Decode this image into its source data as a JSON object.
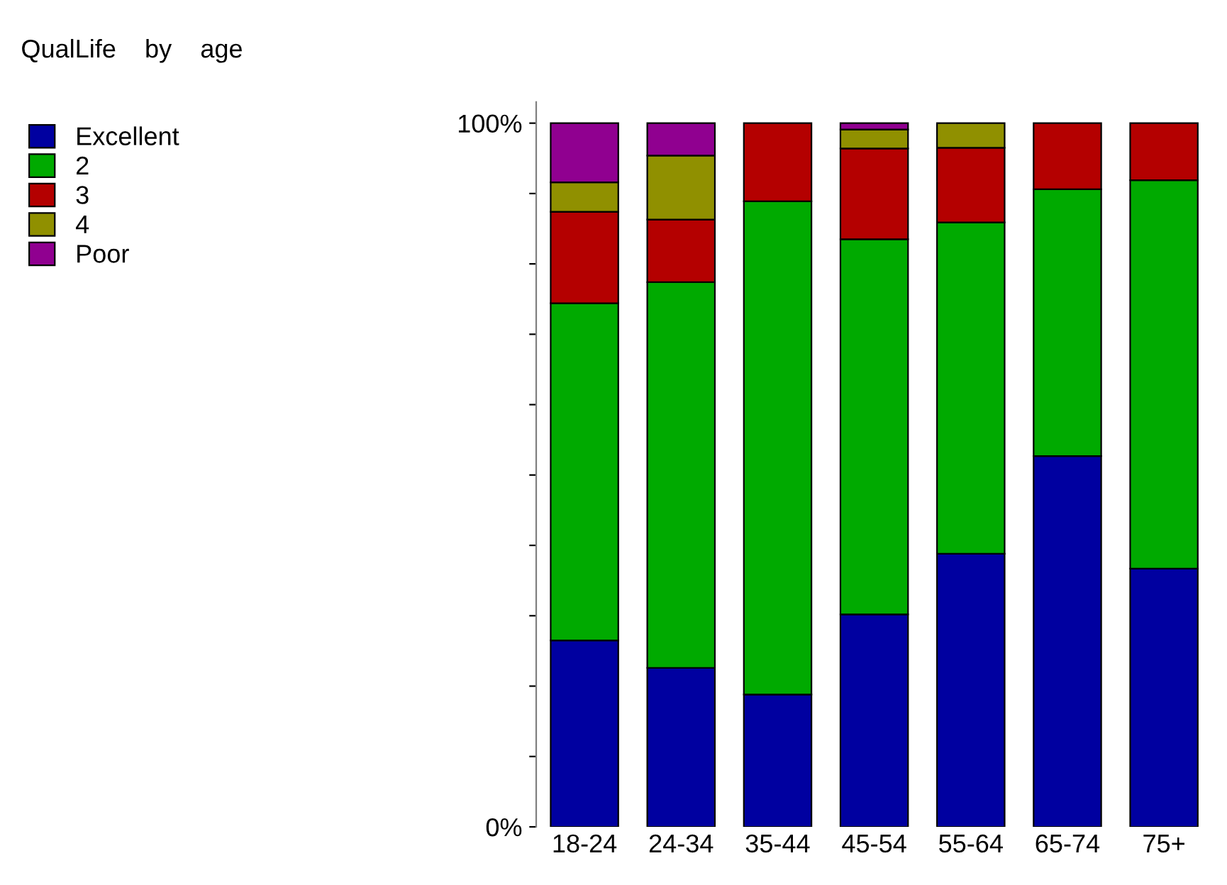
{
  "chart_data": {
    "type": "bar",
    "title": "QualLife    by    age",
    "stacked": true,
    "categories": [
      "18-24",
      "24-34",
      "35-44",
      "45-54",
      "55-64",
      "65-74",
      "75+"
    ],
    "series": [
      {
        "name": "Excellent",
        "color": "#0000a0",
        "values": [
          26.5,
          22.6,
          18.8,
          30.2,
          38.8,
          52.7,
          36.7
        ]
      },
      {
        "name": "2",
        "color": "#00aa00",
        "values": [
          47.9,
          54.8,
          70.1,
          53.3,
          47.1,
          37.9,
          55.2
        ]
      },
      {
        "name": "3",
        "color": "#b40000",
        "values": [
          13.0,
          8.9,
          11.1,
          12.9,
          10.6,
          9.4,
          8.1
        ]
      },
      {
        "name": "4",
        "color": "#909000",
        "values": [
          4.2,
          9.1,
          null,
          2.7,
          3.5,
          null,
          null
        ]
      },
      {
        "name": "Poor",
        "color": "#900090",
        "values": [
          8.4,
          4.6,
          null,
          0.9,
          null,
          null,
          null
        ]
      }
    ],
    "ylim": [
      0,
      103
    ],
    "yticks": [
      {
        "value": 0,
        "label": "0%"
      },
      {
        "value": 10,
        "label": null
      },
      {
        "value": 20,
        "label": null
      },
      {
        "value": 30,
        "label": null
      },
      {
        "value": 40,
        "label": null
      },
      {
        "value": 50,
        "label": null
      },
      {
        "value": 60,
        "label": null
      },
      {
        "value": 70,
        "label": null
      },
      {
        "value": 80,
        "label": null
      },
      {
        "value": 90,
        "label": null
      },
      {
        "value": 100,
        "label": "100%"
      }
    ],
    "grid": false,
    "legend": "top left"
  }
}
